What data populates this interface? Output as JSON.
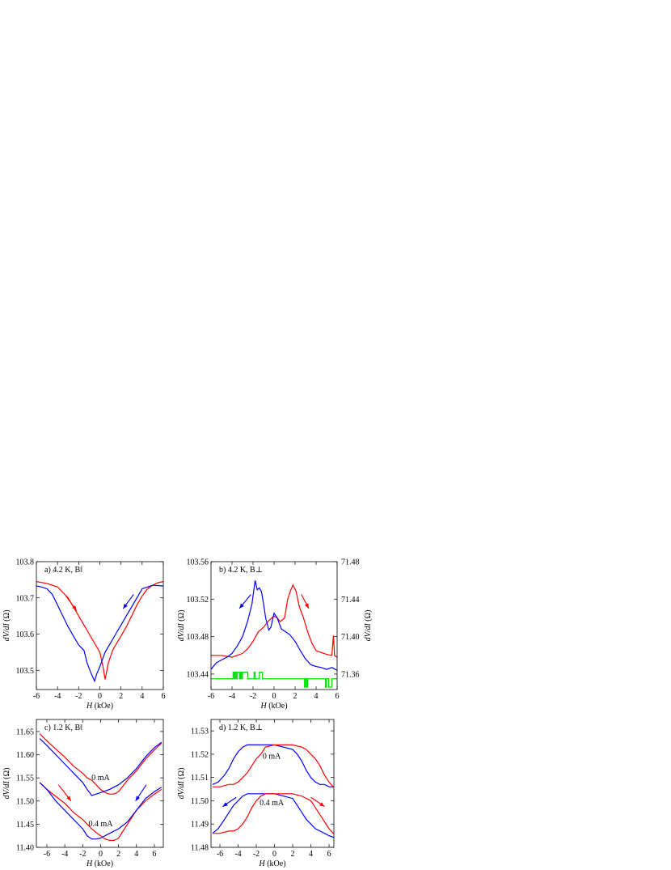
{
  "chart_data": [
    {
      "type": "line",
      "panel_label": "a)  4.2 K, B‖",
      "xlabel_italic": "H",
      "xlabel_unit": " (kOe)",
      "ylabel_italic": "dV/dI",
      "ylabel_unit": " (Ω)",
      "xlim": [
        -6,
        6
      ],
      "ylim": [
        103.447,
        103.8
      ],
      "xticks": [
        -6,
        -4,
        -2,
        0,
        2,
        4,
        6
      ],
      "xtick_labels": [
        "-6",
        "-4",
        "-2",
        "0",
        "2",
        "4",
        "6"
      ],
      "yticks": [
        103.5,
        103.6,
        103.7,
        103.8
      ],
      "ytick_labels": [
        "103.5",
        "103.6",
        "103.7",
        "103.8"
      ],
      "series": [
        {
          "color": "#ff0000",
          "x": [
            -6,
            -5,
            -4,
            -3.5,
            -3,
            -2.5,
            -2,
            -1.5,
            -1,
            -0.5,
            0,
            0.3,
            0.5,
            0.8,
            1.2,
            1.5,
            2,
            2.5,
            3,
            3.5,
            4,
            4.5,
            5,
            5.5,
            6
          ],
          "y": [
            103.745,
            103.74,
            103.73,
            103.715,
            103.7,
            103.675,
            103.65,
            103.625,
            103.6,
            103.575,
            103.55,
            103.51,
            103.475,
            103.52,
            103.555,
            103.57,
            103.595,
            103.62,
            103.65,
            103.68,
            103.705,
            103.725,
            103.735,
            103.742,
            103.745
          ]
        },
        {
          "color": "#0000ff",
          "x": [
            -6,
            -5.5,
            -5,
            -4.5,
            -4,
            -3.5,
            -3,
            -2.5,
            -2,
            -1.5,
            -1.2,
            -0.8,
            -0.5,
            -0.3,
            0,
            0.5,
            1,
            1.5,
            2,
            2.5,
            3,
            3.5,
            4,
            5,
            6
          ],
          "y": [
            103.733,
            103.73,
            103.725,
            103.71,
            103.68,
            103.65,
            103.62,
            103.595,
            103.57,
            103.555,
            103.52,
            103.49,
            103.47,
            103.49,
            103.51,
            103.55,
            103.575,
            103.6,
            103.625,
            103.65,
            103.675,
            103.7,
            103.725,
            103.735,
            103.733
          ]
        }
      ]
    },
    {
      "type": "line",
      "panel_label": "b)  4.2 K,  B⊥",
      "xlabel_italic": "H",
      "xlabel_unit": " (kOe)",
      "ylabel_italic": "dV/dI",
      "ylabel_unit": " (Ω)",
      "xlim": [
        -6,
        6
      ],
      "ylim": [
        103.4235,
        103.56
      ],
      "y2lim": [
        71.3435,
        71.48
      ],
      "xticks": [
        -6,
        -4,
        -2,
        0,
        2,
        4,
        6
      ],
      "xtick_labels": [
        "-6",
        "-4",
        "-2",
        "0",
        "2",
        "4",
        "6"
      ],
      "yticks": [
        103.44,
        103.48,
        103.52,
        103.56
      ],
      "ytick_labels": [
        "103.44",
        "103.48",
        "103.52",
        "103.56"
      ],
      "y2ticks": [
        71.36,
        71.4,
        71.44,
        71.48
      ],
      "y2tick_labels": [
        "71.36",
        "71.40",
        "71.44",
        "71.48"
      ],
      "series": [
        {
          "color": "#ff0000",
          "axis": "left",
          "x": [
            -6,
            -5,
            -4,
            -3,
            -2.5,
            -2,
            -1.5,
            -1,
            -0.5,
            0,
            0.3,
            0.6,
            1,
            1.3,
            1.6,
            1.8,
            2.1,
            2.4,
            2.8,
            3.2,
            3.6,
            4,
            4.5,
            5,
            5.5,
            5.65,
            5.75,
            5.85,
            6
          ],
          "y": [
            103.46,
            103.46,
            103.458,
            103.462,
            103.467,
            103.475,
            103.485,
            103.49,
            103.497,
            103.502,
            103.5,
            103.496,
            103.5,
            103.52,
            103.53,
            103.535,
            103.528,
            103.512,
            103.5,
            103.485,
            103.473,
            103.465,
            103.463,
            103.461,
            103.46,
            103.481,
            103.46,
            103.459,
            103.458
          ]
        },
        {
          "color": "#0000ff",
          "axis": "left",
          "x": [
            -6,
            -5.5,
            -5,
            -4.5,
            -4,
            -3.5,
            -3,
            -2.5,
            -2.1,
            -1.8,
            -1.6,
            -1.4,
            -1.2,
            -1,
            -0.8,
            -0.5,
            -0.3,
            0,
            0.3,
            0.7,
            1,
            1.5,
            2,
            2.5,
            3,
            3.5,
            4,
            4.5,
            5,
            5.5,
            6
          ],
          "y": [
            103.445,
            103.452,
            103.455,
            103.458,
            103.462,
            103.47,
            103.48,
            103.497,
            103.515,
            103.54,
            103.53,
            103.532,
            103.528,
            103.515,
            103.5,
            103.487,
            103.49,
            103.505,
            103.5,
            103.488,
            103.486,
            103.482,
            103.475,
            103.465,
            103.456,
            103.45,
            103.448,
            103.447,
            103.445,
            103.447,
            103.444
          ]
        },
        {
          "color": "#00dd00",
          "axis": "right",
          "step": true,
          "x": [
            -6,
            -3.9,
            -3.8,
            -3.7,
            -3.6,
            -3.5,
            -3.3,
            -3.2,
            -3.1,
            -3.0,
            -2.5,
            -1.9,
            -1.8,
            -1.4,
            -1.1,
            2.9,
            3.0,
            3.1,
            3.2,
            3.4,
            4.9,
            5.0,
            5.2,
            5.5,
            6
          ],
          "y": [
            71.355,
            71.362,
            71.355,
            71.362,
            71.355,
            71.362,
            71.355,
            71.362,
            71.355,
            71.362,
            71.355,
            71.362,
            71.355,
            71.362,
            71.355,
            71.346,
            71.355,
            71.346,
            71.355,
            71.355,
            71.346,
            71.355,
            71.346,
            71.355,
            71.355
          ]
        }
      ]
    },
    {
      "type": "line",
      "panel_label": "c)  1.2 K, B‖",
      "xlabel_italic": "H",
      "xlabel_unit": " (kOe)",
      "ylabel_italic": "dV/dI",
      "ylabel_unit": " (Ω)",
      "xlim": [
        -7.17,
        7.0
      ],
      "ylim": [
        11.4,
        11.676
      ],
      "xticks": [
        -6,
        -4,
        -2,
        0,
        2,
        4,
        6
      ],
      "xtick_labels": [
        "-6",
        "-4",
        "-2",
        "0",
        "2",
        "4",
        "6"
      ],
      "yticks": [
        11.4,
        11.45,
        11.5,
        11.55,
        11.6,
        11.65
      ],
      "ytick_labels": [
        "11.40",
        "11.45",
        "11.50",
        "11.55",
        "11.60",
        "11.65"
      ],
      "annotations": [
        "0 mA",
        "0.4 mA"
      ],
      "series": [
        {
          "color": "#ff0000",
          "label": "0 mA",
          "x": [
            -6.8,
            -6,
            -5,
            -4,
            -3,
            -2,
            -1.5,
            -1,
            -0.5,
            0,
            0.5,
            1,
            1.5,
            2,
            3,
            4,
            5,
            6,
            6.8
          ],
          "y": [
            11.645,
            11.63,
            11.612,
            11.595,
            11.575,
            11.56,
            11.55,
            11.545,
            11.535,
            11.525,
            11.518,
            11.515,
            11.515,
            11.52,
            11.545,
            11.565,
            11.59,
            11.61,
            11.625
          ]
        },
        {
          "color": "#0000ff",
          "label": "0 mA",
          "x": [
            -6.8,
            -6,
            -5,
            -4,
            -3,
            -2,
            -1.5,
            -1,
            -0.5,
            0,
            1,
            2,
            3,
            4,
            5,
            6,
            6.8
          ],
          "y": [
            11.635,
            11.62,
            11.6,
            11.58,
            11.56,
            11.54,
            11.525,
            11.512,
            11.515,
            11.518,
            11.525,
            11.535,
            11.55,
            11.57,
            11.595,
            11.615,
            11.627
          ]
        },
        {
          "color": "#ff0000",
          "label": "0.4 mA",
          "x": [
            -6.8,
            -6,
            -5,
            -4,
            -3,
            -2,
            -1,
            -0.5,
            0,
            0.5,
            1,
            1.5,
            2,
            2.5,
            3,
            4,
            5,
            6,
            6.8
          ],
          "y": [
            11.54,
            11.525,
            11.51,
            11.495,
            11.475,
            11.46,
            11.44,
            11.432,
            11.425,
            11.418,
            11.415,
            11.415,
            11.42,
            11.435,
            11.45,
            11.48,
            11.5,
            11.515,
            11.525
          ]
        },
        {
          "color": "#0000ff",
          "label": "0.4 mA",
          "x": [
            -6.8,
            -6,
            -5,
            -4,
            -3,
            -2,
            -1.5,
            -1,
            -0.5,
            0,
            1,
            2,
            3,
            4,
            5,
            6,
            6.8
          ],
          "y": [
            11.54,
            11.525,
            11.5,
            11.48,
            11.46,
            11.44,
            11.425,
            11.418,
            11.418,
            11.42,
            11.43,
            11.44,
            11.455,
            11.48,
            11.505,
            11.52,
            11.53
          ]
        }
      ]
    },
    {
      "type": "line",
      "panel_label": "d)  1.2 K, B⊥",
      "xlabel_italic": "H",
      "xlabel_unit": " (kOe)",
      "ylabel_italic": "dV/dI",
      "ylabel_unit": " (Ω)",
      "xlim": [
        -6.98,
        6.53
      ],
      "ylim": [
        11.48,
        11.5349
      ],
      "xticks": [
        -6,
        -4,
        -2,
        0,
        2,
        4,
        6
      ],
      "xtick_labels": [
        "-6",
        "-4",
        "-2",
        "0",
        "2",
        "4",
        "6"
      ],
      "yticks": [
        11.48,
        11.49,
        11.5,
        11.51,
        11.52,
        11.53
      ],
      "ytick_labels": [
        "11.48",
        "11.49",
        "11.50",
        "11.51",
        "11.52",
        "11.53"
      ],
      "annotations": [
        "0 mA",
        "0.4 mA"
      ],
      "series": [
        {
          "color": "#0000ff",
          "label": "0 mA",
          "x": [
            -6.8,
            -6.2,
            -5.5,
            -5,
            -4.5,
            -4,
            -3.5,
            -3,
            -1,
            0,
            1,
            2,
            2.5,
            3,
            3.5,
            4,
            4.5,
            5,
            5.5,
            6,
            6.7
          ],
          "y": [
            11.507,
            11.508,
            11.511,
            11.514,
            11.518,
            11.521,
            11.523,
            11.524,
            11.524,
            11.524,
            11.523,
            11.522,
            11.52,
            11.517,
            11.513,
            11.51,
            11.508,
            11.507,
            11.507,
            11.506,
            11.506
          ]
        },
        {
          "color": "#ff0000",
          "label": "0 mA",
          "x": [
            -6.8,
            -6,
            -5,
            -4.5,
            -4,
            -3.5,
            -3,
            -2.5,
            -2,
            -1.5,
            -1,
            0,
            1,
            2,
            3,
            3.5,
            4,
            4.5,
            5,
            5.5,
            6,
            6.7
          ],
          "y": [
            11.506,
            11.506,
            11.507,
            11.507,
            11.508,
            11.51,
            11.512,
            11.515,
            11.518,
            11.52,
            11.523,
            11.524,
            11.524,
            11.524,
            11.523,
            11.522,
            11.52,
            11.518,
            11.515,
            11.511,
            11.508,
            11.505
          ]
        },
        {
          "color": "#0000ff",
          "label": "0.4 mA",
          "x": [
            -6.8,
            -6.2,
            -5.5,
            -5,
            -4.5,
            -4,
            -3.5,
            -3,
            -1,
            0,
            1,
            2,
            2.5,
            3,
            3.5,
            4,
            4.5,
            5,
            5.5,
            6,
            6.7
          ],
          "y": [
            11.486,
            11.488,
            11.492,
            11.495,
            11.498,
            11.5,
            11.502,
            11.503,
            11.503,
            11.503,
            11.502,
            11.501,
            11.498,
            11.495,
            11.492,
            11.49,
            11.488,
            11.487,
            11.486,
            11.485,
            11.484
          ]
        },
        {
          "color": "#ff0000",
          "label": "0.4 mA",
          "x": [
            -6.8,
            -6,
            -5,
            -4.5,
            -4,
            -3.5,
            -3,
            -2.5,
            -2,
            -1.5,
            -1,
            0,
            1,
            2,
            3,
            3.5,
            4,
            4.5,
            5,
            5.5,
            6,
            6.7
          ],
          "y": [
            11.486,
            11.486,
            11.487,
            11.487,
            11.488,
            11.49,
            11.493,
            11.497,
            11.5,
            11.502,
            11.503,
            11.503,
            11.503,
            11.503,
            11.502,
            11.501,
            11.5,
            11.497,
            11.494,
            11.491,
            11.488,
            11.485
          ]
        }
      ]
    }
  ]
}
